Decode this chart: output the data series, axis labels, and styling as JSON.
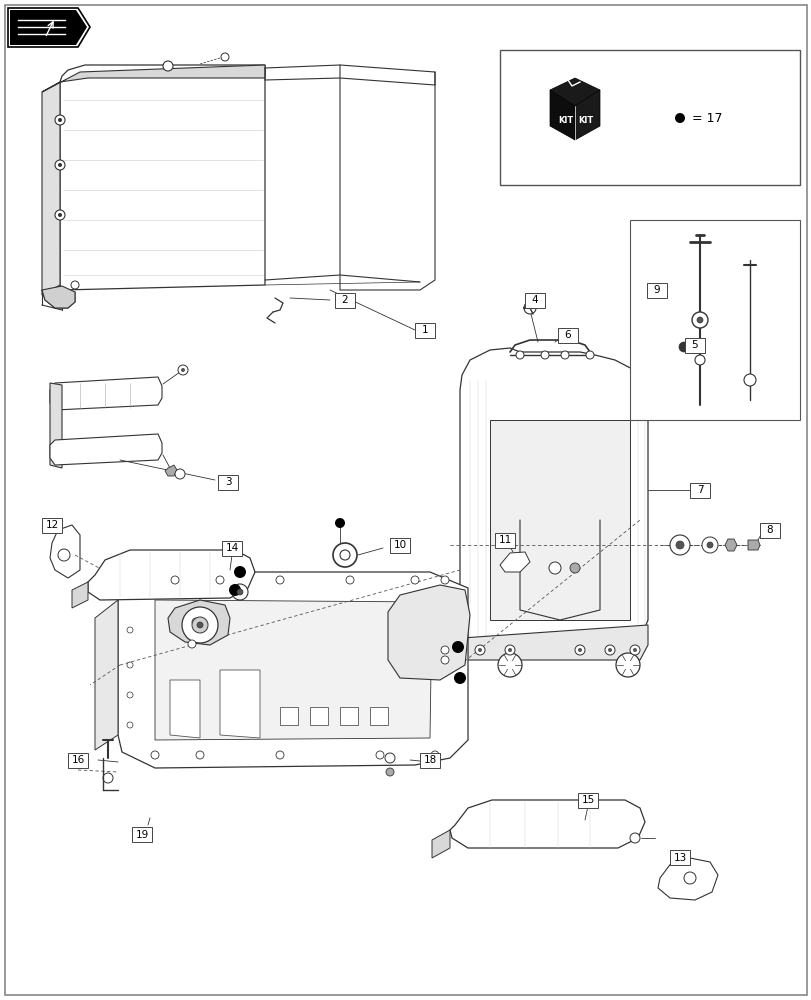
{
  "bg": "#ffffff",
  "fig_w": 8.12,
  "fig_h": 10.0,
  "dpi": 100,
  "lc": "#333333",
  "lw": 0.8
}
